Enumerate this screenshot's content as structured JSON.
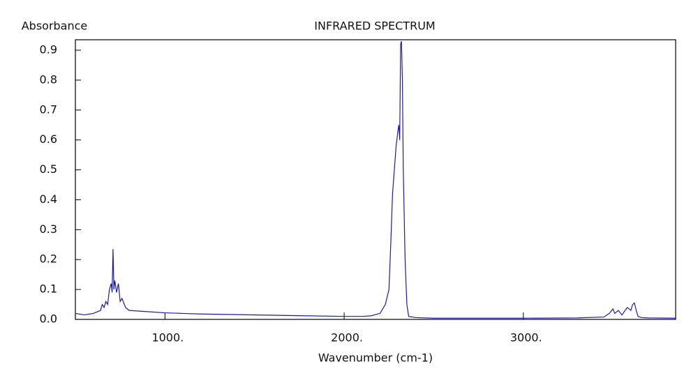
{
  "chart_data": {
    "type": "line",
    "title": "INFRARED SPECTRUM",
    "y_label": "Absorbance",
    "x_label": "Wavenumber (cm-1)",
    "xlim": [
      500,
      3850
    ],
    "ylim": [
      0,
      0.935
    ],
    "xticks": [
      {
        "value": 1000,
        "label": "1000."
      },
      {
        "value": 2000,
        "label": "2000."
      },
      {
        "value": 3000,
        "label": "3000."
      }
    ],
    "yticks": [
      {
        "value": 0,
        "label": "0.0"
      },
      0.1,
      0.2,
      0.3,
      0.4,
      0.5,
      0.6,
      0.7,
      0.8,
      0.9
    ],
    "series": [
      {
        "color": "#1c1ca0",
        "x": [
          500,
          550,
          600,
          620,
          640,
          650,
          660,
          670,
          680,
          690,
          700,
          705,
          710,
          715,
          720,
          730,
          740,
          750,
          760,
          780,
          800,
          850,
          900,
          1000,
          1100,
          1200,
          1400,
          1600,
          1800,
          2000,
          2100,
          2150,
          2200,
          2230,
          2250,
          2260,
          2270,
          2280,
          2290,
          2300,
          2305,
          2310,
          2315,
          2320,
          2325,
          2330,
          2340,
          2350,
          2360,
          2400,
          2500,
          3000,
          3300,
          3450,
          3480,
          3500,
          3510,
          3530,
          3550,
          3580,
          3600,
          3610,
          3620,
          3630,
          3640,
          3660,
          3700,
          3850
        ],
        "values": [
          0.02,
          0.015,
          0.02,
          0.025,
          0.03,
          0.05,
          0.04,
          0.06,
          0.05,
          0.1,
          0.12,
          0.09,
          0.235,
          0.1,
          0.13,
          0.09,
          0.12,
          0.06,
          0.07,
          0.04,
          0.03,
          0.028,
          0.026,
          0.022,
          0.02,
          0.018,
          0.016,
          0.014,
          0.012,
          0.01,
          0.01,
          0.012,
          0.02,
          0.05,
          0.1,
          0.25,
          0.42,
          0.5,
          0.58,
          0.63,
          0.65,
          0.6,
          0.92,
          0.93,
          0.8,
          0.5,
          0.2,
          0.05,
          0.01,
          0.006,
          0.004,
          0.004,
          0.005,
          0.008,
          0.02,
          0.035,
          0.02,
          0.03,
          0.015,
          0.04,
          0.03,
          0.05,
          0.055,
          0.03,
          0.01,
          0.006,
          0.005,
          0.004
        ]
      }
    ]
  }
}
